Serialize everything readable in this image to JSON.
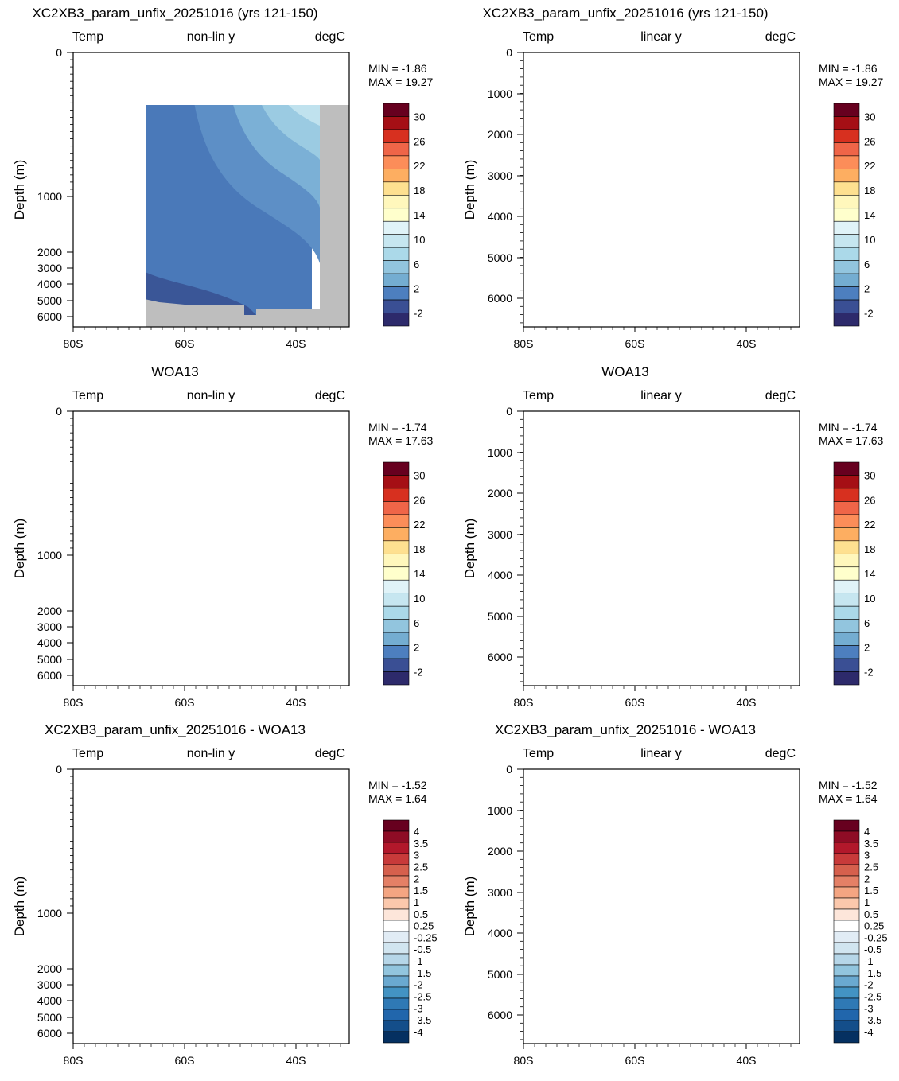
{
  "chart_data": [
    {
      "type": "heatmap",
      "title": "XC2XB3_param_unfix_20251016 (yrs 121-150)",
      "left_label": "Temp",
      "center_label": "non-lin y",
      "right_label": "degC",
      "ylabel": "Depth (m)",
      "y_scale": "non-linear",
      "x_ticks": [
        "80S",
        "60S",
        "40S"
      ],
      "y_ticks": [
        "0",
        "1000",
        "2000",
        "3000",
        "4000",
        "5000",
        "6000"
      ],
      "stats": {
        "min_label": "MIN =",
        "min_value": "-1.86",
        "max_label": "MAX =",
        "max_value": "19.27"
      },
      "colorbar": {
        "labels": [
          "30",
          "26",
          "22",
          "18",
          "14",
          "10",
          "6",
          "2",
          "-2"
        ],
        "colors": [
          "#67001f",
          "#a50f15",
          "#d7301f",
          "#ef6548",
          "#fc8d59",
          "#fdae61",
          "#fee090",
          "#fff7bc",
          "#ffffcc",
          "#e0f3f8",
          "#c6e6f0",
          "#abd9e9",
          "#92c5de",
          "#74add1",
          "#4d7fbf",
          "#3a4f94",
          "#2d2a6b"
        ]
      }
    },
    {
      "type": "heatmap",
      "title": "XC2XB3_param_unfix_20251016 (yrs 121-150)",
      "left_label": "Temp",
      "center_label": "linear y",
      "right_label": "degC",
      "ylabel": "Depth (m)",
      "y_scale": "linear",
      "x_ticks": [
        "80S",
        "60S",
        "40S"
      ],
      "y_ticks": [
        "0",
        "1000",
        "2000",
        "3000",
        "4000",
        "5000",
        "6000"
      ],
      "stats": {
        "min_label": "MIN =",
        "min_value": "-1.86",
        "max_label": "MAX =",
        "max_value": "19.27"
      },
      "colorbar": {
        "labels": [
          "30",
          "26",
          "22",
          "18",
          "14",
          "10",
          "6",
          "2",
          "-2"
        ],
        "colors": [
          "#67001f",
          "#a50f15",
          "#d7301f",
          "#ef6548",
          "#fc8d59",
          "#fdae61",
          "#fee090",
          "#fff7bc",
          "#ffffcc",
          "#e0f3f8",
          "#c6e6f0",
          "#abd9e9",
          "#92c5de",
          "#74add1",
          "#4d7fbf",
          "#3a4f94",
          "#2d2a6b"
        ]
      }
    },
    {
      "type": "heatmap",
      "title": "WOA13",
      "left_label": "Temp",
      "center_label": "non-lin y",
      "right_label": "degC",
      "ylabel": "Depth (m)",
      "y_scale": "non-linear",
      "x_ticks": [
        "80S",
        "60S",
        "40S"
      ],
      "y_ticks": [
        "0",
        "1000",
        "2000",
        "3000",
        "4000",
        "5000",
        "6000"
      ],
      "stats": {
        "min_label": "MIN =",
        "min_value": "-1.74",
        "max_label": "MAX =",
        "max_value": "17.63"
      },
      "colorbar": {
        "labels": [
          "30",
          "26",
          "22",
          "18",
          "14",
          "10",
          "6",
          "2",
          "-2"
        ],
        "colors": [
          "#67001f",
          "#a50f15",
          "#d7301f",
          "#ef6548",
          "#fc8d59",
          "#fdae61",
          "#fee090",
          "#fff7bc",
          "#ffffcc",
          "#e0f3f8",
          "#c6e6f0",
          "#abd9e9",
          "#92c5de",
          "#74add1",
          "#4d7fbf",
          "#3a4f94",
          "#2d2a6b"
        ]
      }
    },
    {
      "type": "heatmap",
      "title": "WOA13",
      "left_label": "Temp",
      "center_label": "linear y",
      "right_label": "degC",
      "ylabel": "Depth (m)",
      "y_scale": "linear",
      "x_ticks": [
        "80S",
        "60S",
        "40S"
      ],
      "y_ticks": [
        "0",
        "1000",
        "2000",
        "3000",
        "4000",
        "5000",
        "6000"
      ],
      "stats": {
        "min_label": "MIN =",
        "min_value": "-1.74",
        "max_label": "MAX =",
        "max_value": "17.63"
      },
      "colorbar": {
        "labels": [
          "30",
          "26",
          "22",
          "18",
          "14",
          "10",
          "6",
          "2",
          "-2"
        ],
        "colors": [
          "#67001f",
          "#a50f15",
          "#d7301f",
          "#ef6548",
          "#fc8d59",
          "#fdae61",
          "#fee090",
          "#fff7bc",
          "#ffffcc",
          "#e0f3f8",
          "#c6e6f0",
          "#abd9e9",
          "#92c5de",
          "#74add1",
          "#4d7fbf",
          "#3a4f94",
          "#2d2a6b"
        ]
      }
    },
    {
      "type": "heatmap",
      "title": "XC2XB3_param_unfix_20251016 - WOA13",
      "left_label": "Temp",
      "center_label": "non-lin y",
      "right_label": "degC",
      "ylabel": "Depth (m)",
      "y_scale": "non-linear",
      "x_ticks": [
        "80S",
        "60S",
        "40S"
      ],
      "y_ticks": [
        "0",
        "1000",
        "2000",
        "3000",
        "4000",
        "5000",
        "6000"
      ],
      "stats": {
        "min_label": "MIN =",
        "min_value": "-1.52",
        "max_label": "MAX =",
        "max_value": "1.64"
      },
      "colorbar": {
        "labels": [
          "4",
          "3.5",
          "3",
          "2.5",
          "2",
          "1.5",
          "1",
          "0.5",
          "0.25",
          "-0.25",
          "-0.5",
          "-1",
          "-1.5",
          "-2",
          "-2.5",
          "-3",
          "-3.5",
          "-4"
        ],
        "colors": [
          "#67001f",
          "#8e0c25",
          "#b2182b",
          "#c83a3a",
          "#d6604d",
          "#e48066",
          "#f4a582",
          "#fbc8ac",
          "#fde6da",
          "#ffffff",
          "#e1ecf5",
          "#d1e5f0",
          "#b6d6e8",
          "#92c5de",
          "#6aa9d0",
          "#4393c3",
          "#2f79b5",
          "#2166ac",
          "#144e8a",
          "#053061"
        ]
      }
    },
    {
      "type": "heatmap",
      "title": "XC2XB3_param_unfix_20251016 - WOA13",
      "left_label": "Temp",
      "center_label": "linear y",
      "right_label": "degC",
      "ylabel": "Depth (m)",
      "y_scale": "linear",
      "x_ticks": [
        "80S",
        "60S",
        "40S"
      ],
      "y_ticks": [
        "0",
        "1000",
        "2000",
        "3000",
        "4000",
        "5000",
        "6000"
      ],
      "stats": {
        "min_label": "MIN =",
        "min_value": "-1.52",
        "max_label": "MAX =",
        "max_value": "1.64"
      },
      "colorbar": {
        "labels": [
          "4",
          "3.5",
          "3",
          "2.5",
          "2",
          "1.5",
          "1",
          "0.5",
          "0.25",
          "-0.25",
          "-0.5",
          "-1",
          "-1.5",
          "-2",
          "-2.5",
          "-3",
          "-3.5",
          "-4"
        ],
        "colors": [
          "#67001f",
          "#8e0c25",
          "#b2182b",
          "#c83a3a",
          "#d6604d",
          "#e48066",
          "#f4a582",
          "#fbc8ac",
          "#fde6da",
          "#ffffff",
          "#e1ecf5",
          "#d1e5f0",
          "#b6d6e8",
          "#92c5de",
          "#6aa9d0",
          "#4393c3",
          "#2f79b5",
          "#2166ac",
          "#144e8a",
          "#053061"
        ]
      }
    }
  ]
}
